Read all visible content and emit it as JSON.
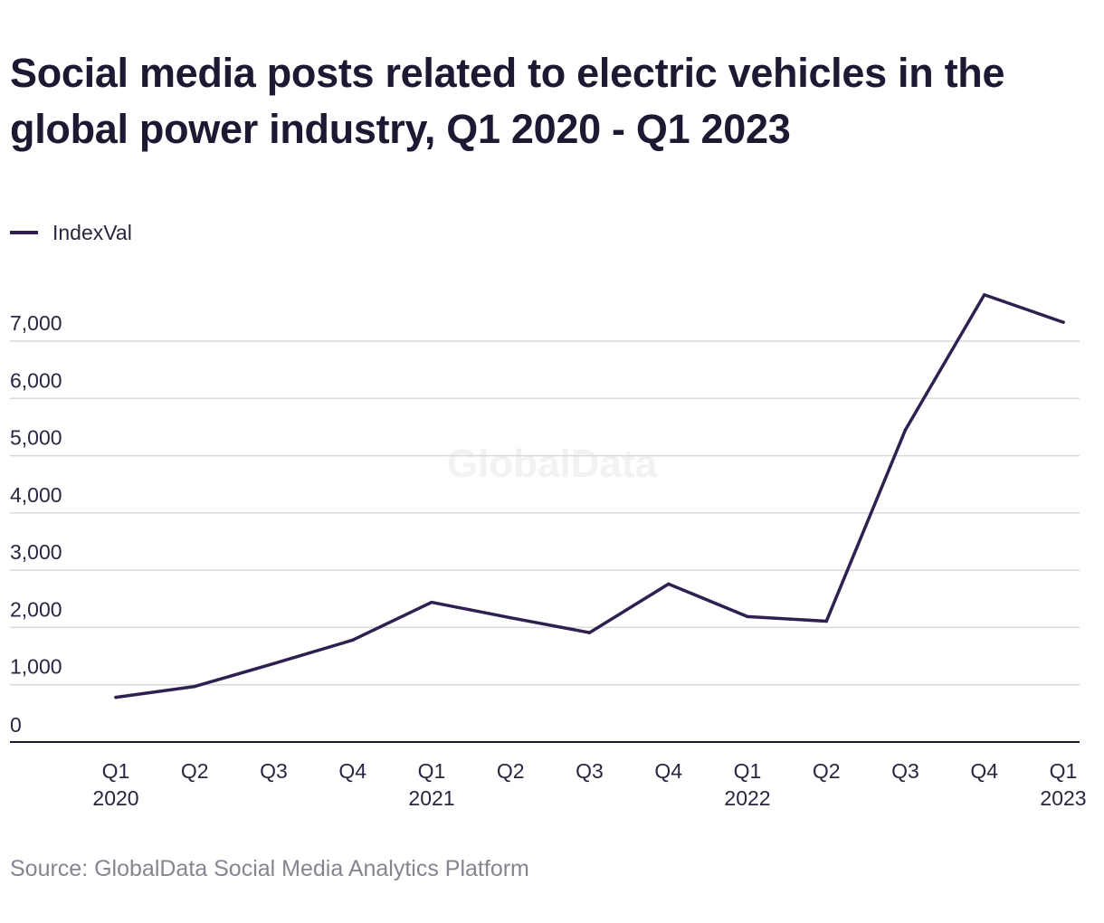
{
  "title": "Social media posts related to electric vehicles in the global power industry, Q1 2020 - Q1 2023",
  "legend": {
    "label": "IndexVal",
    "color": "#2e2050"
  },
  "watermark": "GlobalData",
  "source": "Source: GlobalData Social Media Analytics Platform",
  "chart_data": {
    "type": "line",
    "title": "Social media posts related to electric vehicles in the global power industry, Q1 2020 - Q1 2023",
    "xlabel": "",
    "ylabel": "",
    "categories": [
      {
        "quarter": "Q1",
        "year": "2020"
      },
      {
        "quarter": "Q2",
        "year": ""
      },
      {
        "quarter": "Q3",
        "year": ""
      },
      {
        "quarter": "Q4",
        "year": ""
      },
      {
        "quarter": "Q1",
        "year": "2021"
      },
      {
        "quarter": "Q2",
        "year": ""
      },
      {
        "quarter": "Q3",
        "year": ""
      },
      {
        "quarter": "Q4",
        "year": ""
      },
      {
        "quarter": "Q1",
        "year": "2022"
      },
      {
        "quarter": "Q2",
        "year": ""
      },
      {
        "quarter": "Q3",
        "year": ""
      },
      {
        "quarter": "Q4",
        "year": ""
      },
      {
        "quarter": "Q1",
        "year": "2023"
      }
    ],
    "series": [
      {
        "name": "IndexVal",
        "values": [
          780,
          970,
          1370,
          1780,
          2440,
          2170,
          1910,
          2760,
          2190,
          2110,
          5450,
          7810,
          7330
        ]
      }
    ],
    "ylim": [
      0,
      8000
    ],
    "yticks": [
      0,
      1000,
      2000,
      3000,
      4000,
      5000,
      6000,
      7000
    ],
    "ytick_labels": [
      "0",
      "1,000",
      "2,000",
      "3,000",
      "4,000",
      "5,000",
      "6,000",
      "7,000"
    ],
    "grid": true,
    "legend_position": "top-left",
    "line_color": "#2e2050",
    "grid_color": "#d9d9d9",
    "axis_color": "#1c1a33"
  }
}
